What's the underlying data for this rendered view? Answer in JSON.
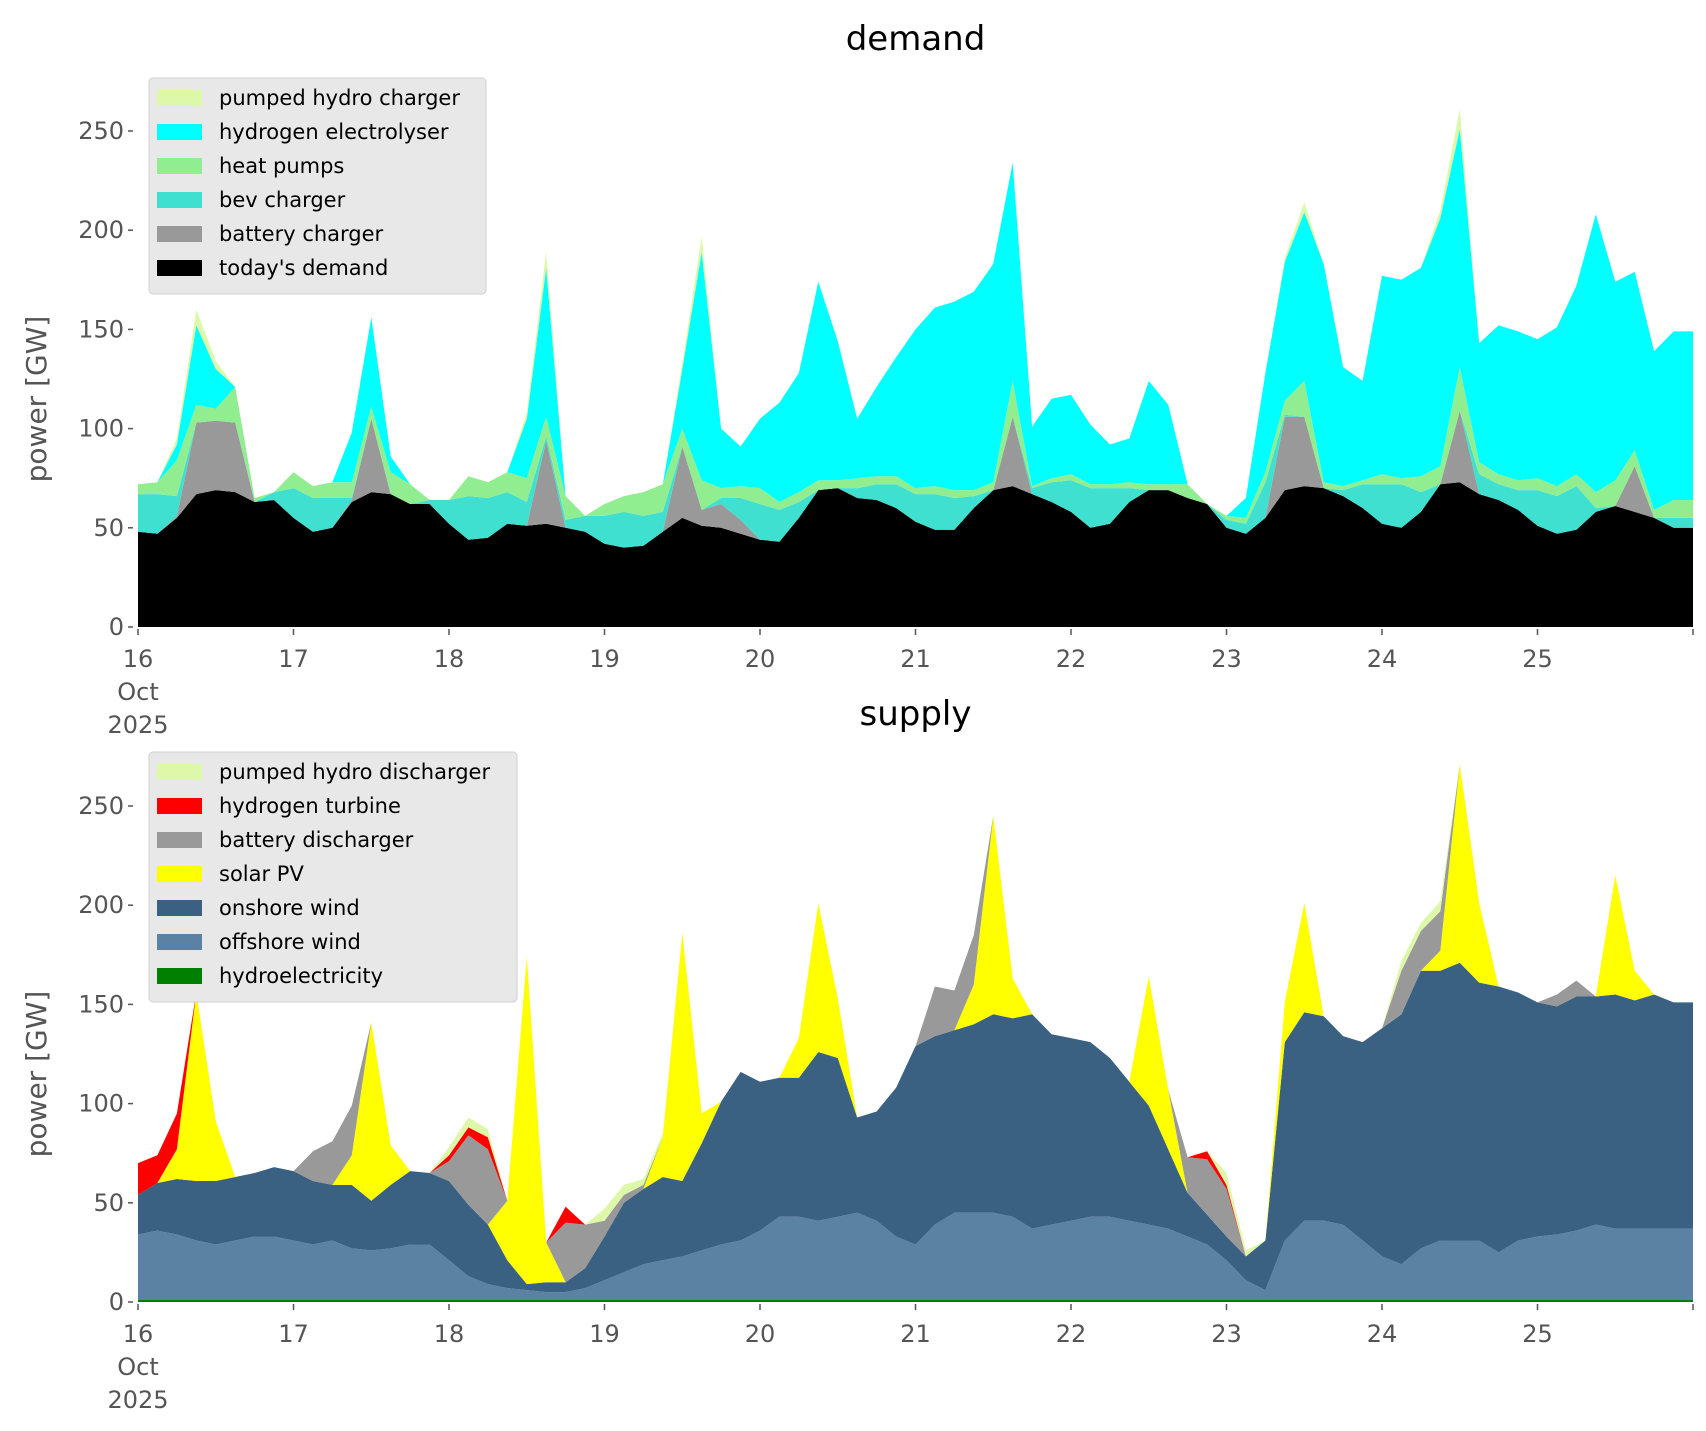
{
  "chart_data": [
    {
      "type": "area",
      "stacked": true,
      "title": "demand",
      "xlabel": "",
      "ylabel": "power [GW]",
      "ylim": [
        0,
        272
      ],
      "x_start": "2025-10-16",
      "x_step_hours": 3,
      "x_ticks": [
        "16",
        "17",
        "18",
        "19",
        "20",
        "21",
        "22",
        "23",
        "24",
        "25"
      ],
      "x_tick_first_extra": [
        "Oct",
        "2025"
      ],
      "y_ticks": [
        "0",
        "50",
        "100",
        "150",
        "200",
        "250"
      ],
      "grid": false,
      "legend_position": "top-left",
      "series": [
        {
          "name": "today's demand",
          "color": "#000000",
          "values": [
            48,
            47,
            55,
            67,
            69,
            68,
            63,
            64,
            55,
            48,
            50,
            63,
            68,
            67,
            62,
            62,
            52,
            44,
            45,
            52,
            51,
            52,
            50,
            48,
            42,
            40,
            41,
            48,
            55,
            51,
            50,
            47,
            44,
            43,
            55,
            69,
            70,
            65,
            64,
            60,
            53,
            49,
            49,
            60,
            69,
            71,
            67,
            63,
            58,
            50,
            52,
            63,
            69,
            69,
            65,
            62,
            50,
            47,
            55,
            69,
            71,
            70,
            66,
            60,
            52,
            50,
            58,
            72,
            73,
            67,
            64,
            59,
            51,
            47,
            49,
            58,
            61,
            58,
            55,
            50
          ]
        },
        {
          "name": "battery charger",
          "color": "#999999",
          "values": [
            0,
            0,
            1,
            36,
            35,
            35,
            0,
            0,
            0,
            0,
            0,
            1,
            37,
            0,
            0,
            0,
            0,
            0,
            0,
            0,
            0,
            42,
            0,
            0,
            0,
            0,
            0,
            0,
            36,
            8,
            12,
            7,
            0,
            0,
            0,
            0,
            0,
            0,
            0,
            0,
            0,
            0,
            0,
            0,
            0,
            35,
            0,
            0,
            0,
            0,
            0,
            0,
            0,
            0,
            0,
            0,
            0,
            0,
            0,
            37,
            35,
            0,
            0,
            0,
            0,
            0,
            0,
            0,
            36,
            0,
            0,
            0,
            0,
            0,
            0,
            0,
            0,
            23,
            0,
            0
          ]
        },
        {
          "name": "bev charger",
          "color": "#40e0d0",
          "values": [
            19,
            20,
            10,
            0,
            0,
            0,
            0,
            4,
            15,
            17,
            15,
            1,
            0,
            0,
            0,
            2,
            12,
            22,
            20,
            16,
            12,
            2,
            4,
            8,
            14,
            18,
            15,
            10,
            0,
            0,
            3,
            11,
            18,
            16,
            8,
            0,
            0,
            5,
            8,
            12,
            14,
            18,
            16,
            6,
            0,
            0,
            3,
            10,
            16,
            20,
            18,
            7,
            0,
            0,
            0,
            0,
            4,
            5,
            18,
            1,
            0,
            0,
            3,
            12,
            20,
            22,
            10,
            0,
            0,
            10,
            8,
            10,
            18,
            19,
            22,
            2,
            0,
            0,
            0,
            5
          ]
        },
        {
          "name": "heat pumps",
          "color": "#90ee90",
          "values": [
            5,
            6,
            18,
            9,
            6,
            18,
            2,
            0,
            8,
            6,
            8,
            8,
            6,
            11,
            10,
            0,
            0,
            10,
            8,
            10,
            12,
            10,
            12,
            0,
            6,
            8,
            12,
            14,
            9,
            15,
            5,
            6,
            8,
            4,
            5,
            5,
            4,
            5,
            4,
            4,
            3,
            4,
            4,
            3,
            4,
            18,
            1,
            2,
            3,
            2,
            2,
            3,
            3,
            3,
            7,
            0,
            2,
            3,
            5,
            7,
            18,
            3,
            2,
            2,
            5,
            3,
            8,
            9,
            22,
            6,
            5,
            5,
            6,
            5,
            6,
            8,
            13,
            8,
            4,
            9
          ]
        },
        {
          "name": "hydrogen electrolyser",
          "color": "#00ffff",
          "values": [
            0,
            0,
            8,
            40,
            20,
            0,
            0,
            0,
            0,
            0,
            0,
            25,
            45,
            8,
            0,
            0,
            0,
            0,
            0,
            0,
            30,
            75,
            0,
            0,
            0,
            0,
            0,
            0,
            30,
            115,
            30,
            20,
            35,
            50,
            60,
            100,
            70,
            30,
            45,
            60,
            80,
            90,
            95,
            100,
            110,
            110,
            30,
            40,
            40,
            30,
            20,
            22,
            52,
            40,
            0,
            0,
            0,
            10,
            50,
            70,
            85,
            110,
            60,
            50,
            100,
            100,
            105,
            125,
            120,
            60,
            75,
            75,
            70,
            80,
            95,
            140,
            100,
            90,
            80,
            85
          ]
        },
        {
          "name": "pumped hydro charger",
          "color": "#dcf8a8",
          "values": [
            0,
            0,
            3,
            8,
            4,
            0,
            0,
            0,
            0,
            0,
            0,
            0,
            0,
            0,
            0,
            0,
            0,
            0,
            0,
            0,
            3,
            8,
            0,
            0,
            0,
            0,
            0,
            0,
            3,
            8,
            0,
            0,
            0,
            0,
            0,
            0,
            0,
            0,
            0,
            0,
            0,
            0,
            0,
            0,
            0,
            0,
            0,
            0,
            0,
            0,
            0,
            0,
            0,
            0,
            0,
            0,
            0,
            0,
            0,
            2,
            5,
            0,
            0,
            0,
            0,
            0,
            0,
            4,
            10,
            0,
            0,
            0,
            0,
            0,
            0,
            0,
            0,
            0,
            0,
            0
          ]
        }
      ]
    },
    {
      "type": "area",
      "stacked": true,
      "title": "supply",
      "xlabel": "",
      "ylabel": "power [GW]",
      "ylim": [
        0,
        272
      ],
      "x_start": "2025-10-16",
      "x_step_hours": 3,
      "x_ticks": [
        "16",
        "17",
        "18",
        "19",
        "20",
        "21",
        "22",
        "23",
        "24",
        "25"
      ],
      "x_tick_first_extra": [
        "Oct",
        "2025"
      ],
      "y_ticks": [
        "0",
        "50",
        "100",
        "150",
        "200",
        "250"
      ],
      "grid": false,
      "legend_position": "top-left",
      "series": [
        {
          "name": "hydroelectricity",
          "color": "#008000",
          "values": [
            1,
            1,
            1,
            1,
            1,
            1,
            1,
            1,
            1,
            1,
            1,
            1,
            1,
            1,
            1,
            1,
            1,
            1,
            1,
            1,
            1,
            1,
            1,
            1,
            1,
            1,
            1,
            1,
            1,
            1,
            1,
            1,
            1,
            1,
            1,
            1,
            1,
            1,
            1,
            1,
            1,
            1,
            1,
            1,
            1,
            1,
            1,
            1,
            1,
            1,
            1,
            1,
            1,
            1,
            1,
            1,
            1,
            1,
            1,
            1,
            1,
            1,
            1,
            1,
            1,
            1,
            1,
            1,
            1,
            1,
            1,
            1,
            1,
            1,
            1,
            1,
            1,
            1,
            1,
            1
          ]
        },
        {
          "name": "offshore wind",
          "color": "#5b81a3",
          "values": [
            33,
            35,
            33,
            30,
            28,
            30,
            32,
            32,
            30,
            28,
            30,
            26,
            25,
            26,
            28,
            28,
            20,
            12,
            8,
            6,
            5,
            4,
            4,
            6,
            10,
            14,
            18,
            20,
            22,
            25,
            28,
            30,
            35,
            42,
            42,
            40,
            42,
            44,
            40,
            32,
            28,
            38,
            44,
            44,
            44,
            42,
            36,
            38,
            40,
            42,
            42,
            40,
            38,
            36,
            32,
            28,
            20,
            10,
            5,
            30,
            40,
            40,
            38,
            30,
            22,
            18,
            26,
            30,
            30,
            30,
            24,
            30,
            32,
            33,
            35,
            38,
            36,
            36,
            36,
            36
          ]
        },
        {
          "name": "onshore wind",
          "color": "#3b6182",
          "values": [
            20,
            24,
            28,
            30,
            32,
            32,
            32,
            35,
            35,
            32,
            28,
            32,
            25,
            32,
            37,
            36,
            40,
            36,
            30,
            14,
            3,
            5,
            5,
            10,
            22,
            35,
            38,
            42,
            38,
            54,
            72,
            85,
            75,
            70,
            70,
            85,
            80,
            48,
            55,
            75,
            100,
            95,
            92,
            95,
            100,
            100,
            108,
            96,
            92,
            88,
            80,
            70,
            60,
            40,
            22,
            15,
            12,
            12,
            25,
            100,
            105,
            103,
            95,
            100,
            115,
            126,
            140,
            136,
            140,
            130,
            134,
            125,
            118,
            115,
            118,
            115,
            118,
            115,
            118,
            114
          ]
        },
        {
          "name": "solar PV",
          "color": "#ffff00",
          "values": [
            0,
            0,
            15,
            95,
            30,
            0,
            0,
            0,
            0,
            0,
            0,
            15,
            90,
            20,
            0,
            0,
            0,
            0,
            0,
            30,
            165,
            20,
            0,
            0,
            0,
            0,
            0,
            20,
            125,
            15,
            0,
            0,
            0,
            0,
            20,
            75,
            30,
            0,
            0,
            0,
            0,
            0,
            0,
            20,
            100,
            20,
            0,
            0,
            0,
            0,
            0,
            0,
            65,
            30,
            0,
            0,
            0,
            0,
            0,
            20,
            55,
            0,
            0,
            0,
            0,
            0,
            0,
            10,
            100,
            40,
            0,
            0,
            0,
            0,
            0,
            0,
            60,
            15,
            0,
            0
          ]
        },
        {
          "name": "battery discharger",
          "color": "#999999",
          "values": [
            0,
            0,
            0,
            0,
            0,
            0,
            0,
            0,
            0,
            15,
            22,
            25,
            0,
            0,
            0,
            0,
            10,
            35,
            38,
            0,
            0,
            0,
            30,
            22,
            8,
            4,
            2,
            0,
            0,
            0,
            0,
            0,
            0,
            0,
            0,
            0,
            0,
            0,
            0,
            0,
            0,
            25,
            20,
            25,
            0,
            0,
            0,
            0,
            0,
            0,
            0,
            0,
            0,
            0,
            18,
            28,
            24,
            0,
            0,
            0,
            0,
            0,
            0,
            0,
            0,
            22,
            20,
            20,
            0,
            0,
            0,
            0,
            0,
            6,
            8,
            0,
            0,
            0,
            0,
            0
          ]
        },
        {
          "name": "hydrogen turbine",
          "color": "#ff0000",
          "values": [
            16,
            14,
            18,
            0,
            0,
            0,
            0,
            0,
            0,
            0,
            0,
            0,
            0,
            0,
            0,
            0,
            3,
            4,
            6,
            0,
            0,
            0,
            8,
            0,
            0,
            0,
            0,
            0,
            0,
            0,
            0,
            0,
            0,
            0,
            0,
            0,
            0,
            0,
            0,
            0,
            0,
            0,
            0,
            0,
            0,
            0,
            0,
            0,
            0,
            0,
            0,
            0,
            0,
            0,
            0,
            4,
            2,
            0,
            0,
            0,
            0,
            0,
            0,
            0,
            0,
            0,
            0,
            0,
            0,
            0,
            0,
            0,
            0,
            0,
            0,
            0,
            0,
            0,
            0,
            0
          ]
        },
        {
          "name": "pumped hydro discharger",
          "color": "#dcf8a8",
          "values": [
            0,
            0,
            0,
            0,
            0,
            0,
            0,
            0,
            0,
            0,
            0,
            0,
            0,
            0,
            0,
            0,
            4,
            5,
            4,
            0,
            0,
            0,
            0,
            0,
            6,
            5,
            3,
            2,
            0,
            0,
            0,
            0,
            0,
            0,
            0,
            0,
            0,
            0,
            0,
            0,
            0,
            0,
            0,
            0,
            0,
            0,
            0,
            0,
            0,
            0,
            0,
            0,
            0,
            0,
            0,
            0,
            6,
            3,
            0,
            0,
            0,
            0,
            0,
            0,
            0,
            5,
            4,
            5,
            0,
            0,
            0,
            0,
            0,
            0,
            0,
            0,
            0,
            0,
            0,
            0
          ]
        }
      ]
    }
  ]
}
